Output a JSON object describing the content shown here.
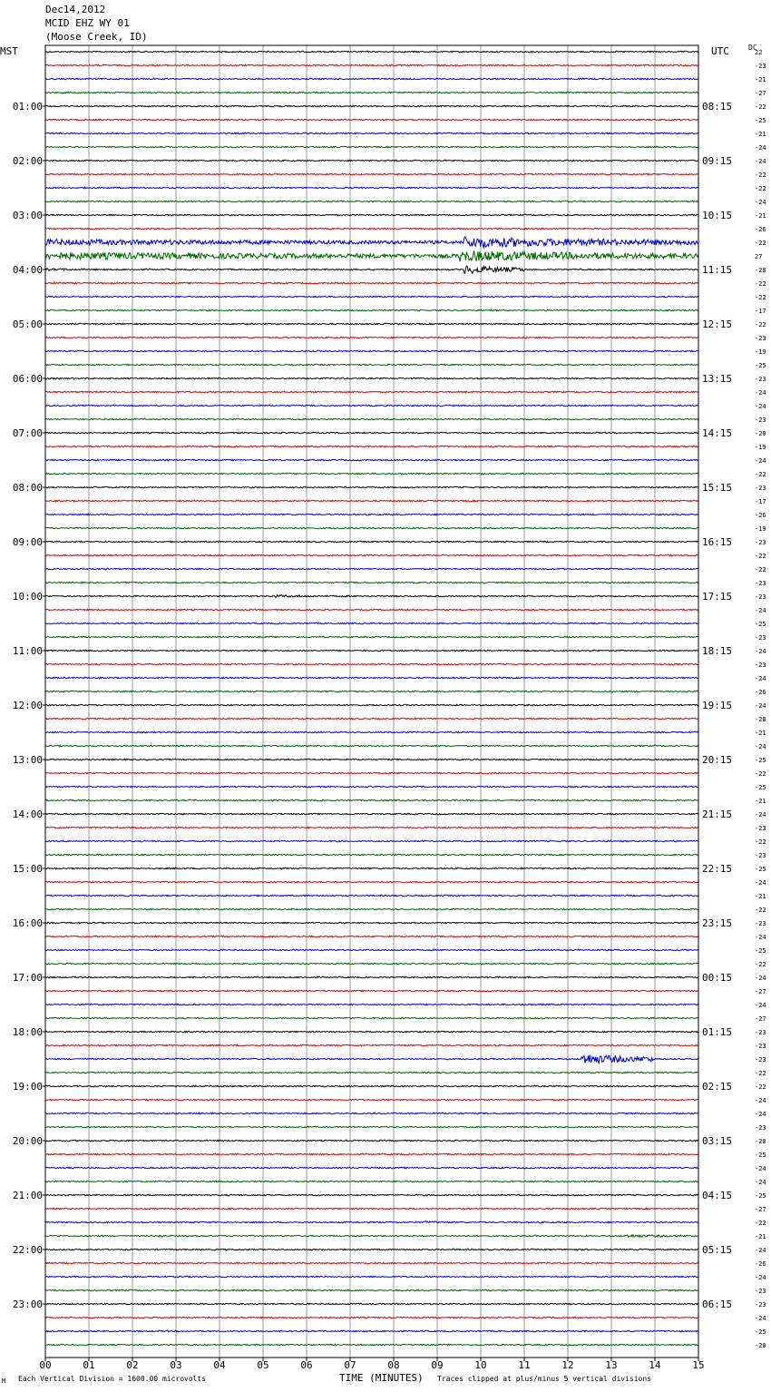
{
  "header": {
    "date": "Dec14,2012",
    "station": "MCID EHZ WY 01",
    "location": "(Moose Creek, ID)"
  },
  "left_axis_title": "MST",
  "right_axis_title": "UTC",
  "dc_title": "DC",
  "footer": {
    "scale": "Each Vertical Division = 1600.00 microvolts",
    "xlabel": "TIME (MINUTES)",
    "clip_note": "Traces clipped at plus/minus 5 vertical divisions",
    "corner_mark": "M"
  },
  "colors": {
    "trace_cycle": [
      "#000000",
      "#d40000",
      "#0000cc",
      "#006600"
    ],
    "grid": "#9a9a9a"
  },
  "chart_data": {
    "type": "line",
    "title": "",
    "xlabel": "TIME (MINUTES)",
    "ylabel": "",
    "xlim": [
      0,
      15
    ],
    "x_ticks": [
      "00",
      "01",
      "02",
      "03",
      "04",
      "05",
      "06",
      "07",
      "08",
      "09",
      "10",
      "11",
      "12",
      "13",
      "14",
      "15"
    ],
    "trace_count": 96,
    "left_labels": [
      "01:00",
      "02:00",
      "03:00",
      "04:00",
      "05:00",
      "06:00",
      "07:00",
      "08:00",
      "09:00",
      "10:00",
      "11:00",
      "12:00",
      "13:00",
      "14:00",
      "15:00",
      "16:00",
      "17:00",
      "18:00",
      "19:00",
      "20:00",
      "21:00",
      "22:00",
      "23:00"
    ],
    "right_labels": [
      "08:15",
      "09:15",
      "10:15",
      "11:15",
      "12:15",
      "13:15",
      "14:15",
      "15:15",
      "16:15",
      "17:15",
      "18:15",
      "19:15",
      "20:15",
      "21:15",
      "22:15",
      "23:15",
      "00:15",
      "01:15",
      "02:15",
      "03:15",
      "04:15",
      "05:15",
      "06:15"
    ],
    "dc_offsets": [
      22,
      -23,
      -21,
      -27,
      -22,
      -25,
      -21,
      -24,
      -24,
      -22,
      -22,
      -24,
      -21,
      -26,
      -22,
      27,
      -28,
      -22,
      -22,
      -17,
      -22,
      -23,
      -19,
      -25,
      -23,
      -24,
      -24,
      -23,
      -20,
      -19,
      -24,
      -22,
      -23,
      -17,
      -26,
      -19,
      -23,
      -22,
      -22,
      -23,
      -23,
      -24,
      -25,
      -23,
      -24,
      -23,
      -24,
      -26,
      -24,
      -20,
      -21,
      -24,
      -25,
      -22,
      -25,
      -21,
      -24,
      -23,
      -22,
      -23,
      -25,
      -24,
      -21,
      -22,
      -23,
      -24,
      -25,
      -22,
      -24,
      -27,
      -24,
      -27,
      -23,
      -23,
      -23,
      -22,
      -22,
      -24,
      -24,
      -23,
      -20,
      -25,
      -24,
      -24,
      -25,
      -27,
      -22,
      -21,
      -24,
      -26,
      -24,
      -23,
      -23,
      -24,
      -25,
      -20
    ],
    "events": [
      {
        "trace": 14,
        "start": 0.0,
        "end": 15.0,
        "amp": 2.6
      },
      {
        "trace": 15,
        "start": 0.0,
        "end": 15.0,
        "amp": 3.2
      },
      {
        "trace": 16,
        "start": 0.0,
        "end": 3.0,
        "amp": 1.0
      },
      {
        "trace": 17,
        "start": 0.2,
        "end": 1.6,
        "amp": 1.0
      },
      {
        "trace": 14,
        "start": 9.6,
        "end": 15.0,
        "amp": 5.0
      },
      {
        "trace": 15,
        "start": 9.5,
        "end": 15.0,
        "amp": 5.0
      },
      {
        "trace": 16,
        "start": 9.6,
        "end": 11.0,
        "amp": 4.0
      },
      {
        "trace": 37,
        "start": 6.5,
        "end": 6.9,
        "amp": 0.8
      },
      {
        "trace": 40,
        "start": 5.2,
        "end": 7.3,
        "amp": 1.3
      },
      {
        "trace": 50,
        "start": 13.4,
        "end": 13.9,
        "amp": 0.7
      },
      {
        "trace": 53,
        "start": 11.9,
        "end": 12.2,
        "amp": 0.8
      },
      {
        "trace": 54,
        "start": 6.5,
        "end": 6.9,
        "amp": 0.6
      },
      {
        "trace": 73,
        "start": 13.9,
        "end": 14.3,
        "amp": 0.6
      },
      {
        "trace": 74,
        "start": 12.3,
        "end": 14.0,
        "amp": 5.0
      },
      {
        "trace": 86,
        "start": 8.7,
        "end": 10.2,
        "amp": 1.0
      },
      {
        "trace": 87,
        "start": 2.6,
        "end": 2.8,
        "amp": 1.4
      },
      {
        "trace": 87,
        "start": 13.3,
        "end": 15.0,
        "amp": 1.5
      },
      {
        "trace": 88,
        "start": 0.0,
        "end": 2.5,
        "amp": 0.6
      }
    ]
  }
}
